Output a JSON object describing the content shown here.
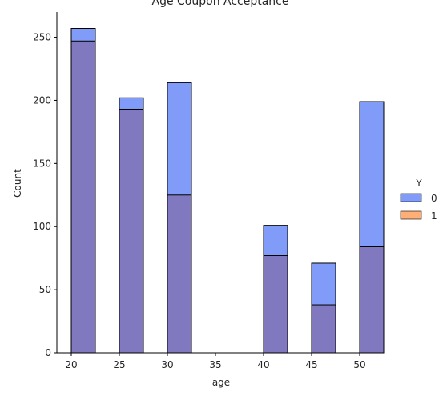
{
  "chart_data": {
    "type": "bar",
    "title": "Age Coupon Acceptance",
    "xlabel": "age",
    "ylabel": "Count",
    "xlim": [
      18.5,
      52.5
    ],
    "ylim": [
      0,
      270
    ],
    "xticks": [
      20,
      25,
      30,
      35,
      40,
      45,
      50
    ],
    "yticks": [
      0,
      50,
      100,
      150,
      200,
      250
    ],
    "bins": [
      {
        "x0": 20,
        "x1": 22.5
      },
      {
        "x0": 25,
        "x1": 27.5
      },
      {
        "x0": 30,
        "x1": 32.5
      },
      {
        "x0": 35,
        "x1": 37.5
      },
      {
        "x0": 40,
        "x1": 42.5
      },
      {
        "x0": 45,
        "x1": 47.5
      },
      {
        "x0": 50,
        "x1": 52.5
      }
    ],
    "legend_title": "Y",
    "legend_position": "right",
    "series": [
      {
        "name": "0",
        "color": "#4c72f5",
        "values": [
          257,
          202,
          214,
          0,
          101,
          71,
          199
        ]
      },
      {
        "name": "1",
        "color": "#ff8c3a",
        "values": [
          247,
          193,
          125,
          0,
          77,
          38,
          84
        ]
      }
    ],
    "overlap_color": "#8079c0",
    "edge_color": "#000000"
  }
}
